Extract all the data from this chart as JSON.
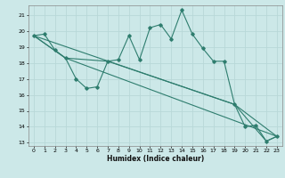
{
  "xlabel": "Humidex (Indice chaleur)",
  "bg_color": "#cce8e8",
  "grid_color": "#b8d8d8",
  "line_color": "#2e7d6e",
  "xlim": [
    -0.5,
    23.5
  ],
  "ylim": [
    12.8,
    21.6
  ],
  "yticks": [
    13,
    14,
    15,
    16,
    17,
    18,
    19,
    20,
    21
  ],
  "xticks": [
    0,
    1,
    2,
    3,
    4,
    5,
    6,
    7,
    8,
    9,
    10,
    11,
    12,
    13,
    14,
    15,
    16,
    17,
    18,
    19,
    20,
    21,
    22,
    23
  ],
  "line1": {
    "x": [
      0,
      1,
      2,
      3,
      4,
      5,
      6,
      7,
      8,
      9,
      10,
      11,
      12,
      13,
      14,
      15,
      16,
      17,
      18,
      19,
      20,
      21,
      22,
      23
    ],
    "y": [
      19.7,
      19.8,
      18.8,
      18.3,
      17.0,
      16.4,
      16.5,
      18.1,
      18.2,
      19.7,
      18.2,
      20.2,
      20.4,
      19.5,
      21.3,
      19.8,
      18.9,
      18.1,
      18.1,
      15.4,
      14.0,
      14.1,
      13.1,
      13.4
    ]
  },
  "line2": {
    "x": [
      0,
      3,
      7,
      19,
      22,
      23
    ],
    "y": [
      19.7,
      18.3,
      18.1,
      15.4,
      13.1,
      13.4
    ]
  },
  "line3": {
    "x": [
      0,
      3,
      23
    ],
    "y": [
      19.7,
      18.3,
      13.4
    ]
  },
  "line4": {
    "x": [
      0,
      19,
      23
    ],
    "y": [
      19.7,
      15.4,
      13.4
    ]
  }
}
